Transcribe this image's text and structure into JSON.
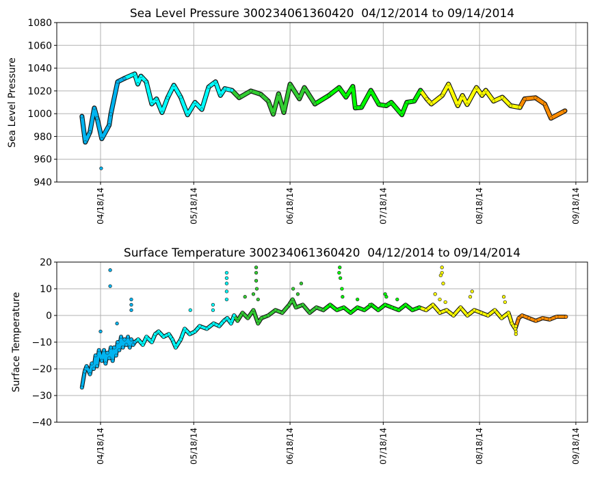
{
  "chart_data": [
    {
      "type": "scatter",
      "title": "Sea Level Pressure 300234061360420  04/12/2014 to 09/14/2014",
      "xlabel": "",
      "ylabel": "Sea Level Pressure",
      "x_units": "days since 04/12/2014",
      "ylim": [
        940,
        1080
      ],
      "yticks": [
        940,
        960,
        980,
        1000,
        1020,
        1040,
        1060,
        1080
      ],
      "xticks": [
        {
          "day": 6,
          "label": "04/18/14"
        },
        {
          "day": 36,
          "label": "05/18/14"
        },
        {
          "day": 67,
          "label": "06/18/14"
        },
        {
          "day": 97,
          "label": "07/18/14"
        },
        {
          "day": 128,
          "label": "08/18/14"
        },
        {
          "day": 159,
          "label": "09/18/14"
        }
      ],
      "xlim": [
        -8,
        163
      ],
      "grid": true,
      "color_segments": [
        {
          "from": 0,
          "to": 17,
          "color": "#00b4f0"
        },
        {
          "from": 17,
          "to": 49.2,
          "color": "#00ffff"
        },
        {
          "from": 49.2,
          "to": 78.4,
          "color": "#32cd32"
        },
        {
          "from": 78.4,
          "to": 110.8,
          "color": "#00ff00"
        },
        {
          "from": 110.8,
          "to": 142,
          "color": "#ffff00"
        },
        {
          "from": 142,
          "to": 160,
          "color": "#ff8c00"
        }
      ],
      "series": [
        [
          0,
          997.7
        ],
        [
          1.1,
          975
        ],
        [
          2.6,
          984
        ],
        [
          4,
          1005
        ],
        [
          4.9,
          996
        ],
        [
          6.4,
          978
        ],
        [
          8.8,
          990
        ],
        [
          9.3,
          999.5
        ],
        [
          11.5,
          1028
        ],
        [
          13.7,
          1031
        ],
        [
          17,
          1035
        ],
        [
          18,
          1026
        ],
        [
          19,
          1033
        ],
        [
          20.7,
          1028
        ],
        [
          22.5,
          1008.5
        ],
        [
          24,
          1013
        ],
        [
          25.8,
          1001
        ],
        [
          27.6,
          1014
        ],
        [
          29.6,
          1025
        ],
        [
          31.8,
          1014.5
        ],
        [
          34,
          999
        ],
        [
          36.4,
          1010
        ],
        [
          38.6,
          1003.7
        ],
        [
          40.8,
          1023.5
        ],
        [
          43,
          1028
        ],
        [
          44.6,
          1016
        ],
        [
          46,
          1022
        ],
        [
          48.3,
          1020.5
        ],
        [
          50.6,
          1014
        ],
        [
          54.4,
          1020
        ],
        [
          57.6,
          1017
        ],
        [
          60,
          1011
        ],
        [
          61.6,
          999.5
        ],
        [
          63.3,
          1017.5
        ],
        [
          65,
          1001
        ],
        [
          67,
          1026
        ],
        [
          70,
          1013
        ],
        [
          71.6,
          1023
        ],
        [
          75,
          1008.5
        ],
        [
          79.5,
          1016
        ],
        [
          82.8,
          1023
        ],
        [
          85,
          1014.5
        ],
        [
          87.2,
          1024
        ],
        [
          88,
          1005
        ],
        [
          90,
          1005.5
        ],
        [
          93,
          1020.5
        ],
        [
          95.6,
          1008
        ],
        [
          98,
          1007
        ],
        [
          99.6,
          1010
        ],
        [
          103,
          999
        ],
        [
          104.6,
          1010
        ],
        [
          107,
          1011
        ],
        [
          109,
          1020.5
        ],
        [
          111,
          1013
        ],
        [
          112.5,
          1008.5
        ],
        [
          116,
          1016
        ],
        [
          118,
          1026
        ],
        [
          121,
          1007
        ],
        [
          122.5,
          1016
        ],
        [
          124,
          1008
        ],
        [
          127,
          1023
        ],
        [
          128.8,
          1016
        ],
        [
          130,
          1020.5
        ],
        [
          132.5,
          1011
        ],
        [
          135.3,
          1014.5
        ],
        [
          138,
          1007
        ],
        [
          141,
          1005.5
        ],
        [
          142.5,
          1013
        ],
        [
          146,
          1014
        ],
        [
          149,
          1008.5
        ],
        [
          151,
          996
        ],
        [
          155.5,
          1002.5
        ]
      ],
      "extra_points": [
        [
          6.2,
          952
        ]
      ]
    },
    {
      "type": "scatter",
      "title": "Surface Temperature 300234061360420  04/12/2014 to 09/14/2014",
      "xlabel": "",
      "ylabel": "Surface Temperature",
      "x_units": "days since 04/12/2014",
      "ylim": [
        -40,
        20
      ],
      "yticks": [
        -40,
        -30,
        -20,
        -10,
        0,
        10,
        20
      ],
      "xticks": [
        {
          "day": 6,
          "label": "04/18/14"
        },
        {
          "day": 36,
          "label": "05/18/14"
        },
        {
          "day": 67,
          "label": "06/18/14"
        },
        {
          "day": 97,
          "label": "07/18/14"
        },
        {
          "day": 128,
          "label": "08/18/14"
        },
        {
          "day": 159,
          "label": "09/18/14"
        }
      ],
      "xlim": [
        -8,
        163
      ],
      "grid": true,
      "color_segments": [
        {
          "from": 0,
          "to": 17.5,
          "color": "#00b4f0"
        },
        {
          "from": 17.5,
          "to": 49.2,
          "color": "#00ffff"
        },
        {
          "from": 49.2,
          "to": 78.4,
          "color": "#32cd32"
        },
        {
          "from": 78.4,
          "to": 110.8,
          "color": "#00ff00"
        },
        {
          "from": 110.8,
          "to": 140.3,
          "color": "#ffff00"
        },
        {
          "from": 140.3,
          "to": 160,
          "color": "#ff8c00"
        }
      ],
      "series": [
        [
          0,
          -27
        ],
        [
          0.9,
          -21
        ],
        [
          1.5,
          -19
        ],
        [
          2.6,
          -22
        ],
        [
          3.2,
          -18
        ],
        [
          3.8,
          -20
        ],
        [
          4.4,
          -15
        ],
        [
          4.9,
          -19
        ],
        [
          5.5,
          -13
        ],
        [
          6.4,
          -17
        ],
        [
          7.1,
          -13
        ],
        [
          7.6,
          -18
        ],
        [
          8.2,
          -14
        ],
        [
          8.8,
          -16
        ],
        [
          9.3,
          -12
        ],
        [
          9.9,
          -17
        ],
        [
          10.4,
          -12
        ],
        [
          11,
          -15
        ],
        [
          11.5,
          -10
        ],
        [
          12,
          -13
        ],
        [
          12.6,
          -8
        ],
        [
          13.2,
          -12
        ],
        [
          13.7,
          -9
        ],
        [
          14.3,
          -11
        ],
        [
          14.8,
          -8
        ],
        [
          15.4,
          -12
        ],
        [
          15.9,
          -9
        ],
        [
          16.5,
          -11
        ],
        [
          17,
          -10
        ],
        [
          18.1,
          -9
        ],
        [
          19.6,
          -11
        ],
        [
          20.8,
          -8
        ],
        [
          22.5,
          -10
        ],
        [
          23.6,
          -7
        ],
        [
          24.7,
          -6
        ],
        [
          26.3,
          -8
        ],
        [
          28,
          -7
        ],
        [
          29.1,
          -9
        ],
        [
          30.2,
          -12
        ],
        [
          31.8,
          -9
        ],
        [
          33.1,
          -5
        ],
        [
          34.7,
          -7
        ],
        [
          36.4,
          -6
        ],
        [
          37.9,
          -4
        ],
        [
          40.2,
          -5
        ],
        [
          42.4,
          -3
        ],
        [
          44.2,
          -4
        ],
        [
          45.7,
          -2
        ],
        [
          46.8,
          -1
        ],
        [
          48,
          -3
        ],
        [
          49,
          0
        ],
        [
          50.1,
          -2
        ],
        [
          51.7,
          1
        ],
        [
          53.4,
          -1
        ],
        [
          55.2,
          2
        ],
        [
          56.7,
          -3
        ],
        [
          57.8,
          -1
        ],
        [
          60,
          0
        ],
        [
          62.3,
          2
        ],
        [
          64.5,
          1
        ],
        [
          66.7,
          4
        ],
        [
          67.8,
          6
        ],
        [
          68.9,
          3
        ],
        [
          71.1,
          4
        ],
        [
          73.3,
          1
        ],
        [
          75.5,
          3
        ],
        [
          77.7,
          2
        ],
        [
          79.9,
          4
        ],
        [
          82.1,
          2
        ],
        [
          84.3,
          3
        ],
        [
          86.5,
          1
        ],
        [
          88.7,
          3
        ],
        [
          90.9,
          2
        ],
        [
          93.2,
          4
        ],
        [
          95.4,
          2
        ],
        [
          97.6,
          4
        ],
        [
          99.8,
          3
        ],
        [
          102,
          2
        ],
        [
          104.2,
          4
        ],
        [
          106.4,
          2
        ],
        [
          108.6,
          3
        ],
        [
          110.8,
          2
        ],
        [
          113,
          4
        ],
        [
          115.2,
          1
        ],
        [
          117.4,
          2
        ],
        [
          119.6,
          0
        ],
        [
          121.9,
          3
        ],
        [
          124.1,
          0
        ],
        [
          126.3,
          2
        ],
        [
          128.5,
          1
        ],
        [
          130.7,
          0
        ],
        [
          132.9,
          2
        ],
        [
          135.1,
          -1
        ],
        [
          137.3,
          1
        ],
        [
          138.4,
          -3
        ],
        [
          139.5,
          -5
        ],
        [
          140.6,
          -1
        ],
        [
          141.7,
          0
        ],
        [
          143.9,
          -1
        ],
        [
          146.1,
          -2
        ],
        [
          148.3,
          -1
        ],
        [
          150.6,
          -1.5
        ],
        [
          152.8,
          -0.5
        ],
        [
          155.8,
          -0.5
        ]
      ],
      "extra_points": [
        [
          9.1,
          17
        ],
        [
          9.1,
          11
        ],
        [
          15.9,
          6
        ],
        [
          15.9,
          4
        ],
        [
          15.9,
          2
        ],
        [
          11.3,
          -3
        ],
        [
          6,
          -6
        ],
        [
          46.6,
          16
        ],
        [
          46.6,
          14
        ],
        [
          46.6,
          12
        ],
        [
          46.6,
          9
        ],
        [
          46.6,
          6
        ],
        [
          42.2,
          4
        ],
        [
          42.2,
          2
        ],
        [
          34.9,
          2
        ],
        [
          56.1,
          18
        ],
        [
          56.1,
          16
        ],
        [
          56.1,
          13
        ],
        [
          56.3,
          10
        ],
        [
          55.2,
          8
        ],
        [
          56.7,
          6
        ],
        [
          52.5,
          7
        ],
        [
          70.6,
          12
        ],
        [
          68,
          10
        ],
        [
          69.5,
          8
        ],
        [
          83,
          18
        ],
        [
          82.8,
          16
        ],
        [
          83.2,
          14
        ],
        [
          83.7,
          10
        ],
        [
          83.9,
          7
        ],
        [
          92.7,
          4
        ],
        [
          97.6,
          8
        ],
        [
          98,
          7
        ],
        [
          88.7,
          6
        ],
        [
          101.5,
          6
        ],
        [
          115.9,
          18
        ],
        [
          115.9,
          16
        ],
        [
          115.5,
          15
        ],
        [
          116.3,
          12
        ],
        [
          113.7,
          8
        ],
        [
          115.2,
          6
        ],
        [
          117,
          5
        ],
        [
          125.6,
          9
        ],
        [
          125,
          7
        ],
        [
          135.8,
          7
        ],
        [
          136.2,
          5
        ],
        [
          139.7,
          -4
        ],
        [
          139.7,
          -6
        ],
        [
          139.7,
          -7
        ]
      ]
    }
  ]
}
